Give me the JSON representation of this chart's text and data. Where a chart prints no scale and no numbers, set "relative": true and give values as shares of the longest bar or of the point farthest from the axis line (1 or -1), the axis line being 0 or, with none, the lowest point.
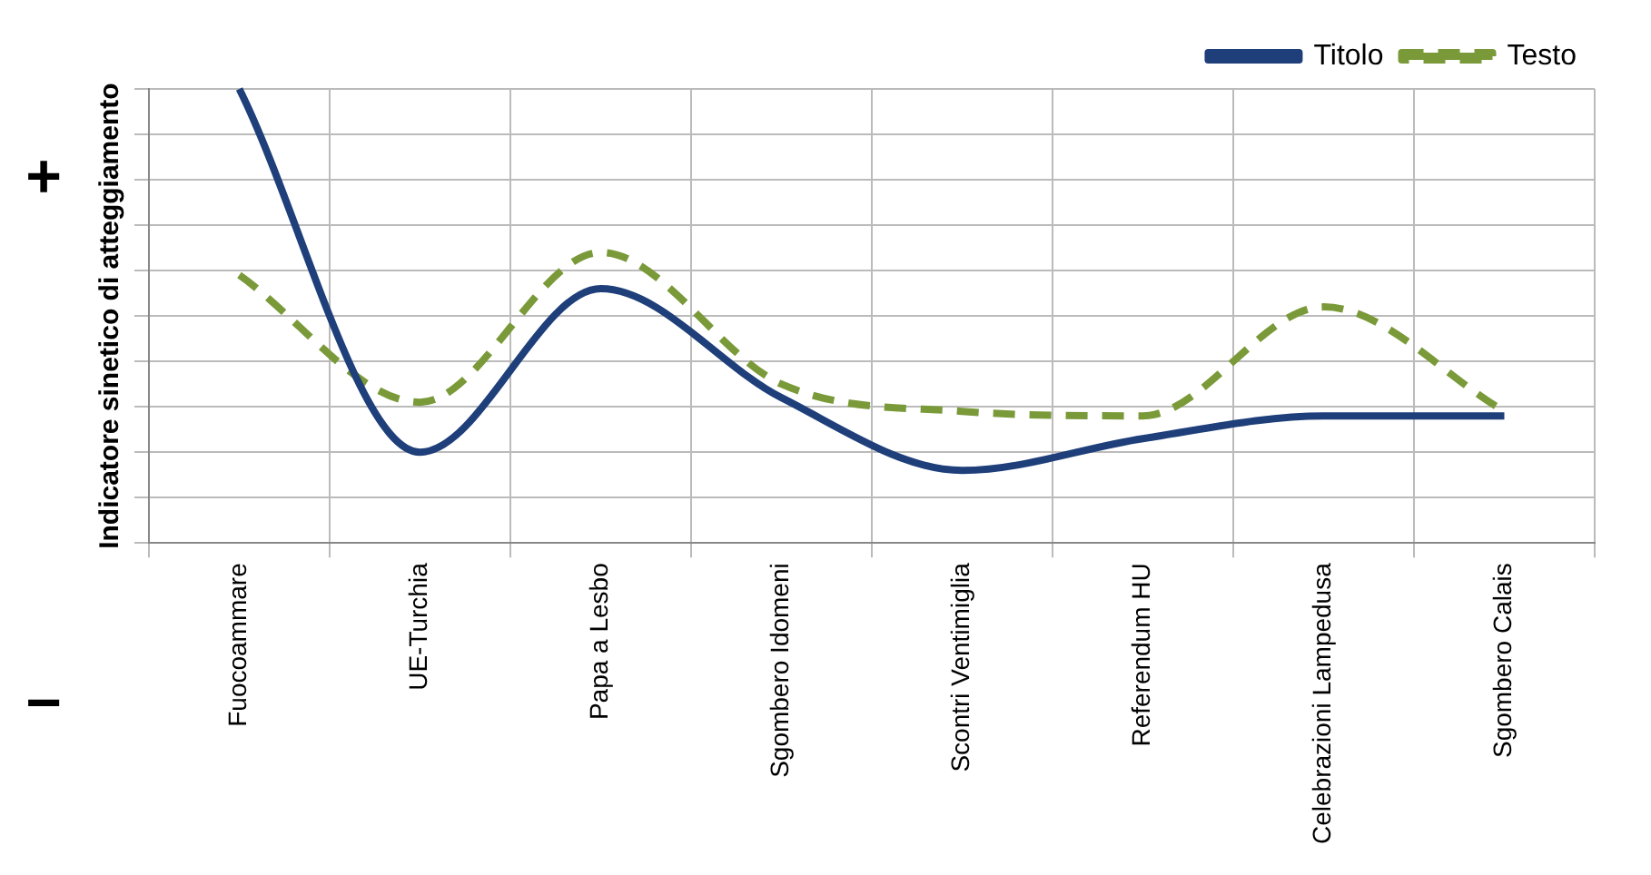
{
  "chart_data": {
    "type": "line",
    "relative": true,
    "ylabel": "Indicatore sinetico di atteggiamento",
    "annotations": [
      "+",
      "−"
    ],
    "categories": [
      "Fuocoammare",
      "UE-Turchia",
      "Papa a Lesbo",
      "Sgombero Idomeni",
      "Scontri Ventimiglia",
      "Referendum HU",
      "Celebrazioni Lampedusa",
      "Sgombero Calais"
    ],
    "series": [
      {
        "name": "Titolo",
        "color": "#1f3f7a",
        "line_style": "solid",
        "values": [
          1.0,
          0.2,
          0.56,
          0.32,
          0.16,
          0.23,
          0.28,
          0.28
        ]
      },
      {
        "name": "Testo",
        "color": "#7a9a3a",
        "line_style": "dashed",
        "values": [
          0.59,
          0.31,
          0.64,
          0.35,
          0.29,
          0.28,
          0.52,
          0.29
        ]
      }
    ],
    "grid": true,
    "legend": "top right",
    "marker": "none"
  }
}
